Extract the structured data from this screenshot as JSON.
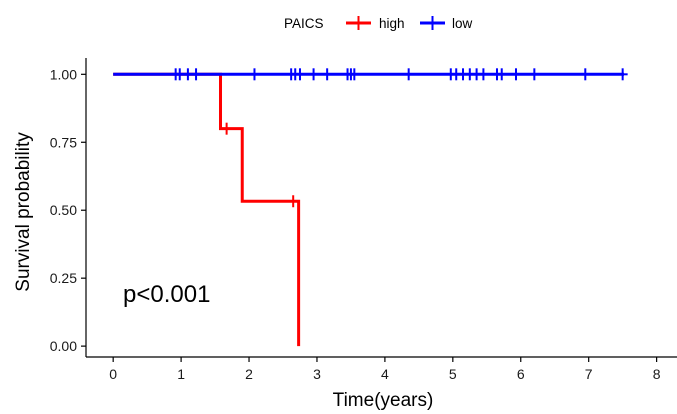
{
  "chart_data": {
    "type": "line",
    "subtype": "kaplan-meier step",
    "legend": {
      "title": "PAICS",
      "position": "top",
      "entries": [
        "high",
        "low"
      ]
    },
    "xlabel": "Time(years)",
    "ylabel": "Survival probability",
    "xlim": [
      -0.4,
      8.3
    ],
    "ylim": [
      -0.04,
      1.06
    ],
    "x_ticks": [
      0,
      1,
      2,
      3,
      4,
      5,
      6,
      7,
      8
    ],
    "y_ticks": [
      0.0,
      0.25,
      0.5,
      0.75,
      1.0
    ],
    "y_tick_labels": [
      "0.00",
      "0.25",
      "0.50",
      "0.75",
      "1.00"
    ],
    "grid": false,
    "annotation": "p<0.001",
    "series": [
      {
        "name": "high",
        "color": "#ff0000",
        "steps": [
          [
            0,
            1.0
          ],
          [
            1.58,
            0.8
          ],
          [
            1.9,
            0.533
          ],
          [
            2.73,
            0.0
          ]
        ],
        "end_x": 2.73,
        "censor_times": [
          1.67,
          2.65
        ]
      },
      {
        "name": "low",
        "color": "#0000ff",
        "steps": [
          [
            0,
            1.0
          ]
        ],
        "end_x": 7.52,
        "censor_times": [
          0.92,
          0.98,
          1.1,
          1.22,
          2.08,
          2.62,
          2.68,
          2.75,
          2.95,
          3.15,
          3.45,
          3.5,
          3.55,
          4.35,
          4.97,
          5.05,
          5.15,
          5.25,
          5.35,
          5.45,
          5.65,
          5.72,
          5.93,
          6.2,
          6.95,
          7.5
        ]
      }
    ]
  }
}
